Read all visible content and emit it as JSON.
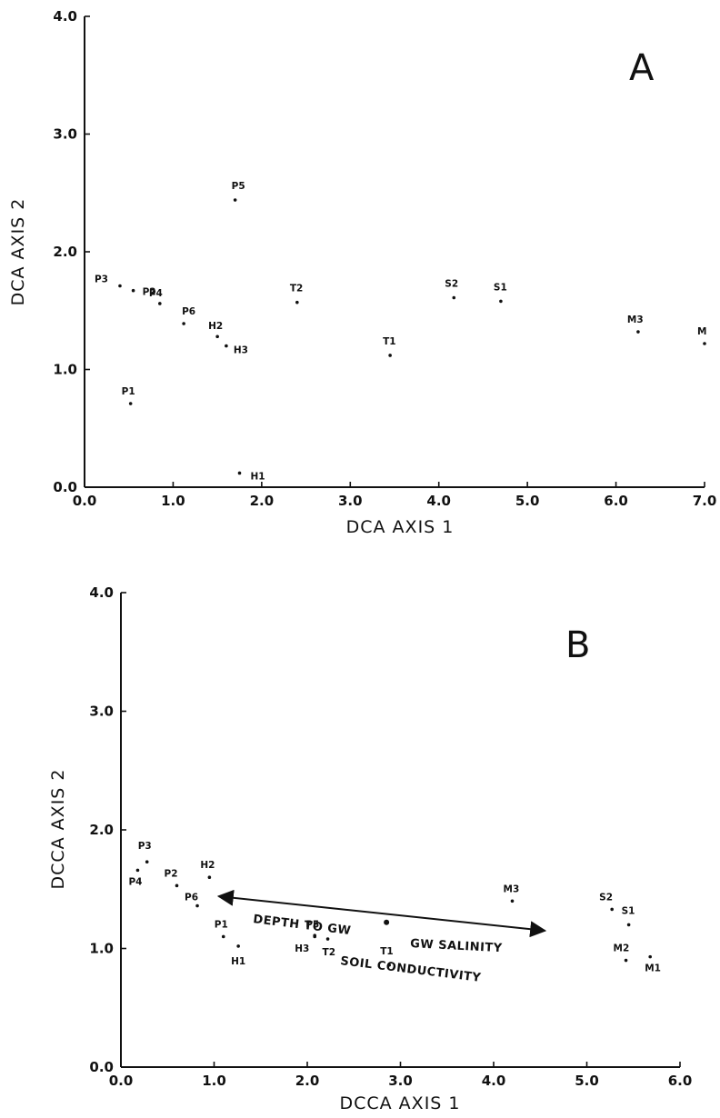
{
  "chart_data": [
    {
      "type": "scatter",
      "panel_label": "A",
      "xlabel": "DCA AXIS 1",
      "ylabel": "DCA AXIS 2",
      "xlim": [
        0,
        7
      ],
      "ylim": [
        0,
        4
      ],
      "x_ticks": [
        "0.0",
        "1.0",
        "2.0",
        "3.0",
        "4.0",
        "5.0",
        "6.0",
        "7.0"
      ],
      "y_ticks": [
        "0.0",
        "1.0",
        "2.0",
        "3.0",
        "4.0"
      ],
      "grid": false,
      "points": [
        {
          "label": "P3",
          "x": 0.4,
          "y": 1.71
        },
        {
          "label": "P2",
          "x": 0.55,
          "y": 1.67
        },
        {
          "label": "P4",
          "x": 0.85,
          "y": 1.56
        },
        {
          "label": "P6",
          "x": 1.12,
          "y": 1.39
        },
        {
          "label": "H2",
          "x": 1.5,
          "y": 1.28
        },
        {
          "label": "H3",
          "x": 1.6,
          "y": 1.2
        },
        {
          "label": "P1",
          "x": 0.52,
          "y": 0.71
        },
        {
          "label": "H1",
          "x": 1.75,
          "y": 0.12
        },
        {
          "label": "P5",
          "x": 1.7,
          "y": 2.44
        },
        {
          "label": "T2",
          "x": 2.4,
          "y": 1.57
        },
        {
          "label": "T1",
          "x": 3.45,
          "y": 1.12
        },
        {
          "label": "S2",
          "x": 4.17,
          "y": 1.61
        },
        {
          "label": "S1",
          "x": 4.7,
          "y": 1.58
        },
        {
          "label": "M3",
          "x": 6.25,
          "y": 1.32
        },
        {
          "label": "M",
          "x": 7.0,
          "y": 1.22
        }
      ]
    },
    {
      "type": "scatter",
      "panel_label": "B",
      "xlabel": "DCCA AXIS 1",
      "ylabel": "DCCA AXIS 2",
      "xlim": [
        0,
        6
      ],
      "ylim": [
        0,
        4
      ],
      "x_ticks": [
        "0.0",
        "1.0",
        "2.0",
        "3.0",
        "4.0",
        "5.0",
        "6.0"
      ],
      "y_ticks": [
        "0.0",
        "1.0",
        "2.0",
        "3.0",
        "4.0"
      ],
      "grid": false,
      "points": [
        {
          "label": "P3",
          "x": 0.28,
          "y": 1.73
        },
        {
          "label": "P4",
          "x": 0.18,
          "y": 1.66
        },
        {
          "label": "P2",
          "x": 0.6,
          "y": 1.53
        },
        {
          "label": "H2",
          "x": 0.95,
          "y": 1.6
        },
        {
          "label": "P6",
          "x": 0.82,
          "y": 1.36
        },
        {
          "label": "P1",
          "x": 1.1,
          "y": 1.1
        },
        {
          "label": "H1",
          "x": 1.26,
          "y": 1.02
        },
        {
          "label": "P5",
          "x": 2.08,
          "y": 1.1
        },
        {
          "label": "H3",
          "x": 2.08,
          "y": 1.11
        },
        {
          "label": "T2",
          "x": 2.22,
          "y": 1.08
        },
        {
          "label": "T1",
          "x": 2.88,
          "y": 0.86
        },
        {
          "label": "M3",
          "x": 4.2,
          "y": 1.4
        },
        {
          "label": "S2",
          "x": 5.27,
          "y": 1.33
        },
        {
          "label": "S1",
          "x": 5.45,
          "y": 1.2
        },
        {
          "label": "M2",
          "x": 5.42,
          "y": 0.9
        },
        {
          "label": "M1",
          "x": 5.68,
          "y": 0.93
        }
      ],
      "environmental_vector": {
        "from": [
          1.05,
          1.44
        ],
        "mid": [
          2.85,
          1.22
        ],
        "to": [
          4.55,
          1.15
        ],
        "labels": [
          "DEPTH TO GW",
          "GW SALINITY",
          "SOIL CONDUCTIVITY"
        ]
      }
    }
  ]
}
